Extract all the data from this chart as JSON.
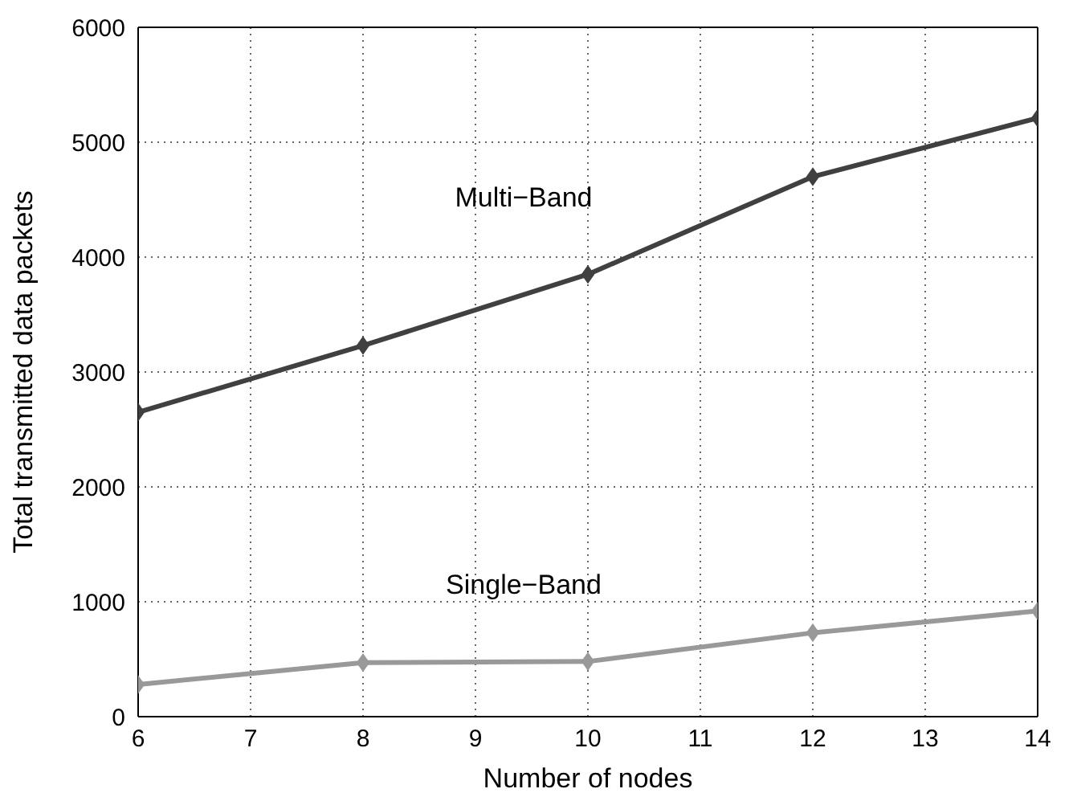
{
  "chart_data": {
    "type": "line",
    "xlabel": "Number of nodes",
    "ylabel": "Total transmitted data packets",
    "x": [
      6,
      8,
      10,
      12,
      14
    ],
    "series": [
      {
        "name": "Multi−Band",
        "color": "#404040",
        "values": [
          2650,
          3230,
          3850,
          4700,
          5210
        ]
      },
      {
        "name": "Single−Band",
        "color": "#999999",
        "values": [
          280,
          470,
          480,
          730,
          920
        ]
      }
    ],
    "xlim": [
      6,
      14
    ],
    "xticks": [
      6,
      7,
      8,
      9,
      10,
      11,
      12,
      13,
      14
    ],
    "ylim": [
      0,
      6000
    ],
    "yticks": [
      0,
      1000,
      2000,
      3000,
      4000,
      5000,
      6000
    ],
    "grid": true,
    "marker": "diamond",
    "line_style": "solid",
    "legend": false
  }
}
